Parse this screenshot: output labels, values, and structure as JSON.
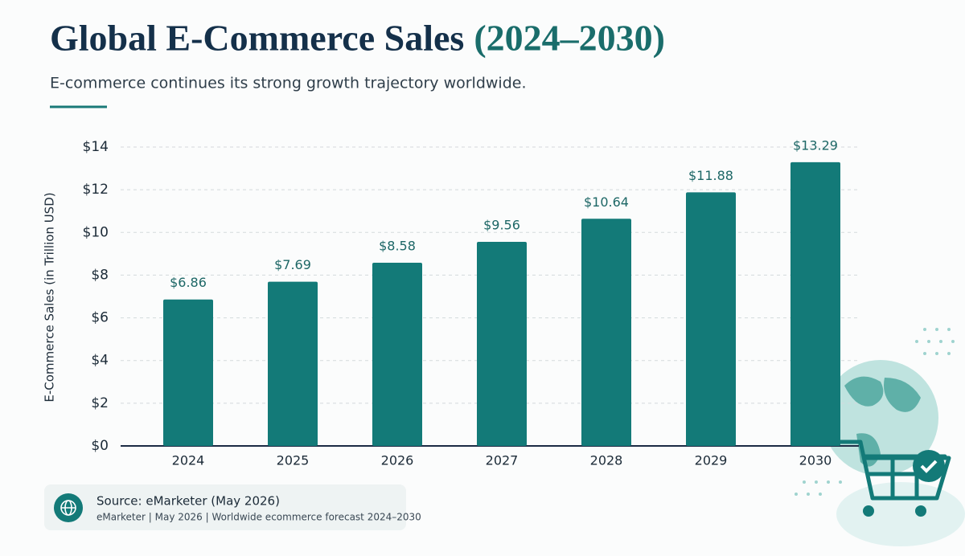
{
  "chart_data": {
    "type": "bar",
    "title": "Global E-Commerce Sales",
    "title_highlight": "(2024–2030)",
    "subtitle": "E-commerce continues its strong growth trajectory worldwide.",
    "y_label": "E-Commerce Sales (in Trillion USD)",
    "categories": [
      "2024",
      "2025",
      "2026",
      "2027",
      "2028",
      "2029",
      "2030"
    ],
    "values": [
      6.86,
      7.69,
      8.58,
      9.56,
      10.64,
      11.88,
      13.29
    ],
    "value_labels": [
      "$6.86",
      "$7.69",
      "$8.58",
      "$9.56",
      "$10.64",
      "$11.88",
      "$13.29"
    ],
    "color": "#137a78",
    "ylim": [
      0,
      14
    ],
    "yticks": [
      {
        "value": 0,
        "label": "$0"
      },
      {
        "value": 2,
        "label": "$2"
      },
      {
        "value": 4,
        "label": "$4"
      },
      {
        "value": 6,
        "label": "$6"
      },
      {
        "value": 8,
        "label": "$8"
      },
      {
        "value": 10,
        "label": "$10"
      },
      {
        "value": 12,
        "label": "$12"
      },
      {
        "value": 14,
        "label": "$14"
      }
    ],
    "grid": true,
    "source": "Source: eMarketer (May 2026)",
    "source_detail": "eMarketer | May 2026 | Worldwide ecommerce forecast 2024–2030"
  }
}
